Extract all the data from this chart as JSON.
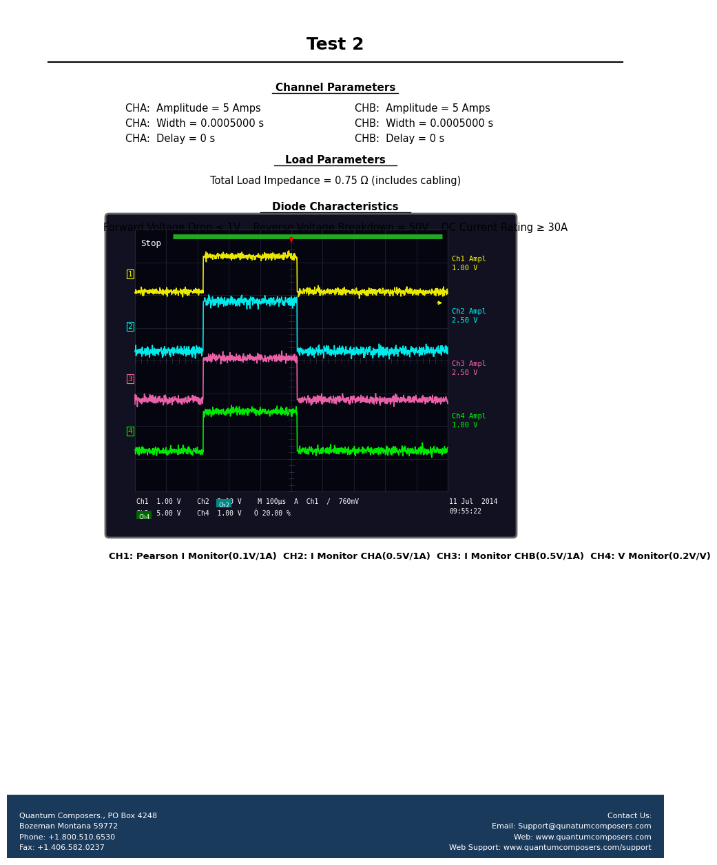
{
  "title": "Test 2",
  "title_fontsize": 18,
  "title_fontweight": "bold",
  "bg_color": "#ffffff",
  "page_width": 9.54,
  "page_height": 12.35,
  "section1_title": "Channel Parameters",
  "cha_amplitude": "CHA:  Amplitude = 5 Amps",
  "chb_amplitude": "CHB:  Amplitude = 5 Amps",
  "cha_width": "CHA:  Width = 0.0005000 s",
  "chb_width": "CHB:  Width = 0.0005000 s",
  "cha_delay": "CHA:  Delay = 0 s",
  "chb_delay": "CHB:  Delay = 0 s",
  "section2_title": "Load Parameters",
  "load_text": "Total Load Impedance = 0.75 Ω (includes cabling)",
  "section3_title": "Diode Characteristics",
  "diode_text": "Forward Voltage Drop ≤ 1V    Reverse Voltage Breakdown = 50V    DC Current Rating ≥ 30A",
  "caption_text": "CH1: Pearson I Monitor(0.1V/1A)  CH2: I Monitor CHA(0.5V/1A)  CH3: I Monitor CHB(0.5V/1A)  CH4: V Monitor(0.2V/V)",
  "footer_bg": "#1a3a5c",
  "footer_left": "Quantum Composers., PO Box 4248\nBozeman Montana 59772\nPhone: +1.800.510.6530\nFax: +1.406.582.0237",
  "footer_right": "Contact Us:\nEmail: Support@qunatumcomposers.com\nWeb: www.quantumcomposers.com\nWeb Support: www.quantumcomposers.com/support",
  "footer_color": "#ffffff",
  "ch1_color": "#ffff00",
  "ch2_color": "#00ffff",
  "ch3_color": "#ff69b4",
  "ch4_color": "#00ff00",
  "osc_status_line1": "Ch1  1.00 V    Ch2  5.00 V    M 100μs  A  Ch1  /  760mV",
  "osc_status_line2": "Ch3  5.00 V    Ch4  1.00 V",
  "osc_status_center": "Ö 20.00 %",
  "osc_status_datetime": "11 Jul  2014\n09:55:22"
}
